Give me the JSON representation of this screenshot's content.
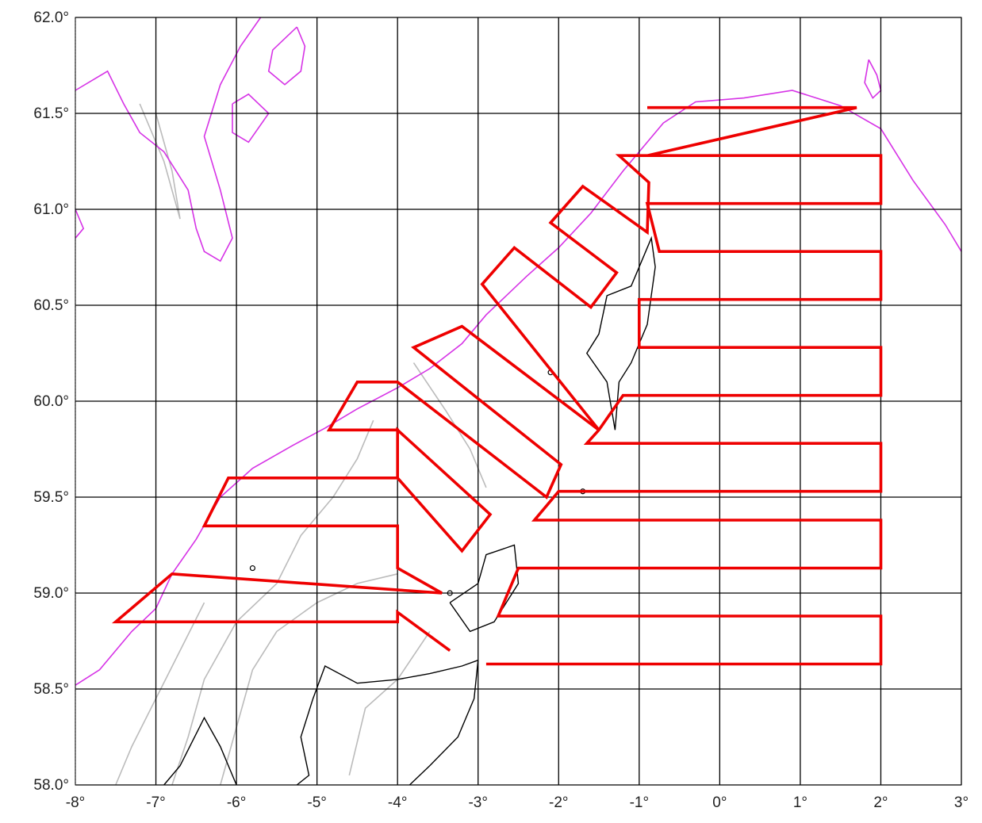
{
  "map": {
    "title": "",
    "lon_range": [
      -8,
      3
    ],
    "lat_range": [
      58,
      62
    ],
    "x_ticks": [
      -8,
      -7,
      -6,
      -5,
      -4,
      -3,
      -2,
      -1,
      0,
      1,
      2,
      3
    ],
    "y_ticks": [
      58.0,
      58.5,
      59.0,
      59.5,
      60.0,
      60.5,
      61.0,
      61.5,
      62.0
    ],
    "x_tick_labels": [
      "-8°",
      "-7°",
      "-6°",
      "-5°",
      "-4°",
      "-3°",
      "-2°",
      "-1°",
      "0°",
      "1°",
      "2°",
      "3°"
    ],
    "y_tick_labels": [
      "58.0°",
      "58.5°",
      "59.0°",
      "59.5°",
      "60.0°",
      "60.5°",
      "61.0°",
      "61.5°",
      "62.0°"
    ],
    "grid": true,
    "colors": {
      "grid": "#000000",
      "survey_track": "#ee0000",
      "contour_shelf_edge": "#d633e6",
      "contour_bathymetry": "#bbbbbb",
      "coastline": "#000000"
    },
    "survey_track": [
      [
        -0.9,
        61.53
      ],
      [
        1.7,
        61.53
      ],
      [
        -0.9,
        61.28
      ],
      [
        2.0,
        61.28
      ],
      [
        2.0,
        61.03
      ],
      [
        -0.9,
        61.03
      ],
      [
        -0.75,
        60.78
      ],
      [
        2.0,
        60.78
      ],
      [
        2.0,
        60.53
      ],
      [
        -1.0,
        60.53
      ],
      [
        -1.0,
        60.28
      ],
      [
        2.0,
        60.28
      ],
      [
        2.0,
        60.03
      ],
      [
        -1.2,
        60.03
      ],
      [
        -1.5,
        59.85
      ],
      [
        -1.65,
        59.78
      ],
      [
        2.0,
        59.78
      ],
      [
        2.0,
        59.53
      ],
      [
        -2.0,
        59.53
      ],
      [
        -2.3,
        59.38
      ],
      [
        2.0,
        59.38
      ],
      [
        2.0,
        59.13
      ],
      [
        -2.5,
        59.13
      ],
      [
        -2.75,
        58.88
      ],
      [
        2.0,
        58.88
      ],
      [
        2.0,
        58.63
      ],
      [
        -2.9,
        58.63
      ]
    ],
    "survey_track_west": [
      [
        -0.9,
        61.28
      ],
      [
        -1.25,
        61.28
      ],
      [
        -0.88,
        61.14
      ],
      [
        -0.9,
        60.88
      ],
      [
        -1.7,
        61.12
      ],
      [
        -2.1,
        60.93
      ],
      [
        -1.28,
        60.67
      ],
      [
        -1.6,
        60.49
      ],
      [
        -2.55,
        60.8
      ],
      [
        -2.95,
        60.61
      ],
      [
        -1.5,
        59.85
      ],
      [
        -3.2,
        60.39
      ],
      [
        -3.8,
        60.28
      ],
      [
        -1.97,
        59.67
      ],
      [
        -2.15,
        59.5
      ],
      [
        -4.0,
        60.1
      ],
      [
        -4.5,
        60.1
      ],
      [
        -4.85,
        59.85
      ],
      [
        -4.0,
        59.85
      ],
      [
        -4.0,
        59.6
      ],
      [
        -3.2,
        59.22
      ],
      [
        -2.85,
        59.41
      ],
      [
        -4.0,
        59.85
      ],
      [
        -4.0,
        59.6
      ],
      [
        -6.1,
        59.6
      ],
      [
        -6.4,
        59.35
      ],
      [
        -4.0,
        59.35
      ],
      [
        -4.0,
        59.13
      ],
      [
        -3.45,
        59.0
      ],
      [
        -6.8,
        59.1
      ],
      [
        -7.5,
        58.85
      ],
      [
        -4.0,
        58.85
      ],
      [
        -4.0,
        58.9
      ],
      [
        -3.35,
        58.7
      ]
    ],
    "shelf_edge_contour": [
      [
        -8.0,
        58.52
      ],
      [
        -7.7,
        58.6
      ],
      [
        -7.3,
        58.8
      ],
      [
        -7.0,
        58.92
      ],
      [
        -6.8,
        59.1
      ],
      [
        -6.5,
        59.28
      ],
      [
        -6.2,
        59.5
      ],
      [
        -5.8,
        59.65
      ],
      [
        -5.3,
        59.77
      ],
      [
        -4.9,
        59.86
      ],
      [
        -4.5,
        59.96
      ],
      [
        -4.0,
        60.07
      ],
      [
        -3.6,
        60.17
      ],
      [
        -3.2,
        60.3
      ],
      [
        -2.9,
        60.45
      ],
      [
        -2.4,
        60.65
      ],
      [
        -2.0,
        60.8
      ],
      [
        -1.6,
        60.98
      ],
      [
        -1.2,
        61.2
      ],
      [
        -0.7,
        61.45
      ],
      [
        -0.3,
        61.56
      ],
      [
        0.3,
        61.58
      ],
      [
        0.9,
        61.62
      ],
      [
        1.5,
        61.54
      ],
      [
        2.0,
        61.42
      ],
      [
        2.4,
        61.15
      ],
      [
        2.8,
        60.92
      ],
      [
        3.0,
        60.78
      ]
    ],
    "contour_nw_upper": [
      [
        -8.0,
        61.62
      ],
      [
        -7.6,
        61.72
      ],
      [
        -7.4,
        61.55
      ],
      [
        -7.2,
        61.4
      ],
      [
        -6.9,
        61.3
      ],
      [
        -6.6,
        61.1
      ],
      [
        -6.5,
        60.9
      ],
      [
        -6.4,
        60.78
      ],
      [
        -6.2,
        60.73
      ],
      [
        -6.05,
        60.85
      ],
      [
        -6.2,
        61.1
      ],
      [
        -6.4,
        61.38
      ],
      [
        -6.2,
        61.65
      ],
      [
        -5.95,
        61.85
      ],
      [
        -5.7,
        62.0
      ]
    ],
    "contour_nw_loop_a": [
      [
        -5.25,
        61.95
      ],
      [
        -5.55,
        61.83
      ],
      [
        -5.6,
        61.72
      ],
      [
        -5.4,
        61.65
      ],
      [
        -5.2,
        61.72
      ],
      [
        -5.15,
        61.85
      ],
      [
        -5.25,
        61.95
      ]
    ],
    "contour_nw_loop_b": [
      [
        -6.05,
        61.55
      ],
      [
        -5.85,
        61.6
      ],
      [
        -5.6,
        61.5
      ],
      [
        -5.85,
        61.35
      ],
      [
        -6.05,
        61.4
      ],
      [
        -6.05,
        61.55
      ]
    ],
    "contour_nw_west": [
      [
        -8.0,
        61.0
      ],
      [
        -7.9,
        60.9
      ],
      [
        -8.0,
        60.85
      ]
    ],
    "contour_far_ne": [
      [
        1.85,
        61.78
      ],
      [
        1.95,
        61.7
      ],
      [
        2.0,
        61.62
      ],
      [
        1.9,
        61.58
      ],
      [
        1.8,
        61.66
      ],
      [
        1.85,
        61.78
      ]
    ],
    "grey_contours": [
      [
        [
          -6.8,
          58.0
        ],
        [
          -6.6,
          58.25
        ],
        [
          -6.4,
          58.55
        ],
        [
          -6.0,
          58.85
        ],
        [
          -5.5,
          59.05
        ],
        [
          -5.2,
          59.3
        ],
        [
          -4.8,
          59.5
        ],
        [
          -4.5,
          59.7
        ],
        [
          -4.3,
          59.9
        ]
      ],
      [
        [
          -7.5,
          58.0
        ],
        [
          -7.3,
          58.2
        ],
        [
          -7.0,
          58.45
        ],
        [
          -6.7,
          58.7
        ],
        [
          -6.4,
          58.95
        ]
      ],
      [
        [
          -6.2,
          58.0
        ],
        [
          -6.0,
          58.3
        ],
        [
          -5.8,
          58.6
        ],
        [
          -5.5,
          58.8
        ],
        [
          -5.0,
          58.95
        ],
        [
          -4.5,
          59.05
        ],
        [
          -4.0,
          59.1
        ]
      ],
      [
        [
          -4.6,
          58.05
        ],
        [
          -4.4,
          58.4
        ],
        [
          -4.0,
          58.55
        ],
        [
          -3.6,
          58.8
        ]
      ],
      [
        [
          -7.0,
          61.5
        ],
        [
          -6.8,
          61.2
        ],
        [
          -6.7,
          60.95
        ],
        [
          -6.9,
          61.25
        ],
        [
          -7.2,
          61.55
        ]
      ],
      [
        [
          -3.8,
          60.2
        ],
        [
          -3.4,
          59.95
        ],
        [
          -3.1,
          59.75
        ],
        [
          -2.9,
          59.55
        ]
      ]
    ],
    "coast_scotland": [
      [
        -3.0,
        58.65
      ],
      [
        -3.2,
        58.62
      ],
      [
        -3.6,
        58.58
      ],
      [
        -4.0,
        58.55
      ],
      [
        -4.5,
        58.53
      ],
      [
        -4.9,
        58.62
      ],
      [
        -5.05,
        58.45
      ],
      [
        -5.2,
        58.25
      ],
      [
        -5.1,
        58.05
      ],
      [
        -5.25,
        58.0
      ]
    ],
    "coast_east": [
      [
        -3.0,
        58.65
      ],
      [
        -3.05,
        58.45
      ],
      [
        -3.25,
        58.25
      ],
      [
        -3.6,
        58.1
      ],
      [
        -3.85,
        58.0
      ]
    ],
    "coast_nw_highlands": [
      [
        -6.0,
        58.0
      ],
      [
        -6.2,
        58.2
      ],
      [
        -6.4,
        58.35
      ],
      [
        -6.7,
        58.1
      ],
      [
        -6.9,
        58.0
      ]
    ],
    "coast_orkney": [
      [
        -3.35,
        58.95
      ],
      [
        -3.0,
        59.05
      ],
      [
        -2.9,
        59.2
      ],
      [
        -2.55,
        59.25
      ],
      [
        -2.5,
        59.05
      ],
      [
        -2.8,
        58.85
      ],
      [
        -3.1,
        58.8
      ],
      [
        -3.35,
        58.95
      ]
    ],
    "coast_shetland": [
      [
        -1.3,
        59.85
      ],
      [
        -1.25,
        60.1
      ],
      [
        -1.1,
        60.2
      ],
      [
        -0.9,
        60.4
      ],
      [
        -0.8,
        60.7
      ],
      [
        -0.85,
        60.85
      ],
      [
        -1.1,
        60.6
      ],
      [
        -1.4,
        60.55
      ],
      [
        -1.5,
        60.35
      ],
      [
        -1.65,
        60.25
      ],
      [
        -1.4,
        60.1
      ],
      [
        -1.3,
        59.85
      ]
    ],
    "islands": [
      [
        -2.1,
        60.15
      ],
      [
        -1.7,
        59.53
      ],
      [
        -5.8,
        59.13
      ],
      [
        -3.35,
        59.0
      ]
    ]
  }
}
